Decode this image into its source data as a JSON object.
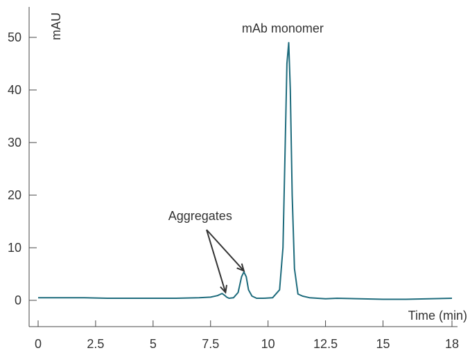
{
  "chart_data": {
    "type": "line",
    "ylabel": "mAU",
    "xlabel": "Time (min)",
    "xlim": [
      0,
      18
    ],
    "ylim": [
      -5,
      55
    ],
    "x_ticks": [
      0,
      2.5,
      5,
      7.5,
      10,
      12.5,
      15,
      18
    ],
    "x_tick_labels": [
      "0",
      "2.5",
      "5",
      "7.5",
      "10",
      "12.5",
      "15",
      "18"
    ],
    "y_ticks": [
      0,
      10,
      20,
      30,
      40,
      50
    ],
    "y_tick_labels": [
      "0",
      "10",
      "20",
      "30",
      "40",
      "50"
    ],
    "grid": false,
    "series": [
      {
        "color": "#1d6b7c",
        "x": [
          0,
          1,
          2,
          3,
          4,
          5,
          6,
          7,
          7.5,
          7.8,
          8.0,
          8.1,
          8.2,
          8.3,
          8.5,
          8.7,
          8.85,
          8.95,
          9.05,
          9.15,
          9.3,
          9.5,
          9.8,
          10.2,
          10.5,
          10.65,
          10.75,
          10.82,
          10.9,
          10.97,
          11.05,
          11.15,
          11.3,
          11.5,
          11.8,
          12.5,
          13,
          14,
          15,
          16,
          17,
          18
        ],
        "y": [
          0.5,
          0.5,
          0.5,
          0.4,
          0.4,
          0.4,
          0.4,
          0.5,
          0.6,
          0.9,
          1.3,
          1.0,
          0.6,
          0.4,
          0.5,
          1.5,
          4.5,
          5.4,
          4.5,
          2.0,
          0.8,
          0.4,
          0.4,
          0.5,
          2.0,
          10.0,
          30.0,
          45.0,
          49.0,
          40.0,
          20.0,
          6.0,
          1.2,
          0.8,
          0.5,
          0.3,
          0.4,
          0.3,
          0.2,
          0.2,
          0.3,
          0.4
        ]
      }
    ],
    "annotations": [
      {
        "text": "mAb monomer",
        "x": 10.85,
        "y": 49
      },
      {
        "text": "Aggregates",
        "x": 7.2,
        "y": 13.5,
        "arrows_to": [
          [
            8.15,
            1.5
          ],
          [
            8.95,
            5.6
          ]
        ]
      }
    ]
  }
}
